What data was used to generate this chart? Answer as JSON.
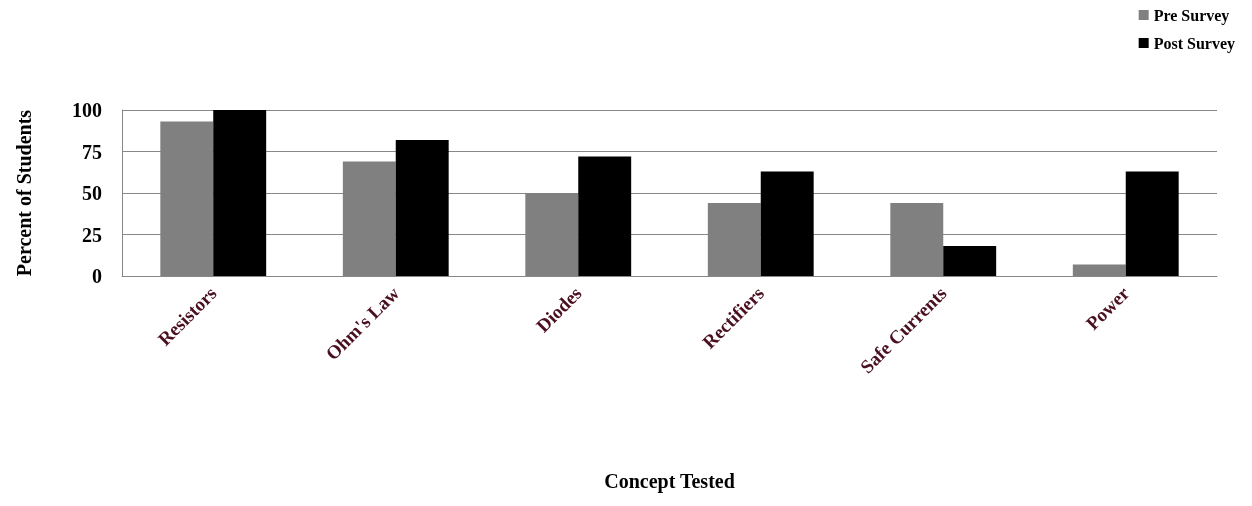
{
  "chart_data": {
    "type": "bar",
    "xlabel": "Concept Tested",
    "ylabel": "Percent of Students",
    "categories": [
      "Resistors",
      "Ohm's Law",
      "Diodes",
      "Rectifiers",
      "Safe Currents",
      "Power"
    ],
    "series": [
      {
        "name": "Pre Survey",
        "color": "#808080",
        "values": [
          93,
          69,
          50,
          44,
          44,
          7
        ]
      },
      {
        "name": "Post Survey",
        "color": "#000000",
        "values": [
          100,
          82,
          72,
          63,
          18,
          63
        ]
      }
    ],
    "ylim": [
      0,
      100
    ],
    "yticks": [
      0,
      25,
      50,
      75,
      100
    ],
    "grid": "y",
    "legend": "top right"
  }
}
